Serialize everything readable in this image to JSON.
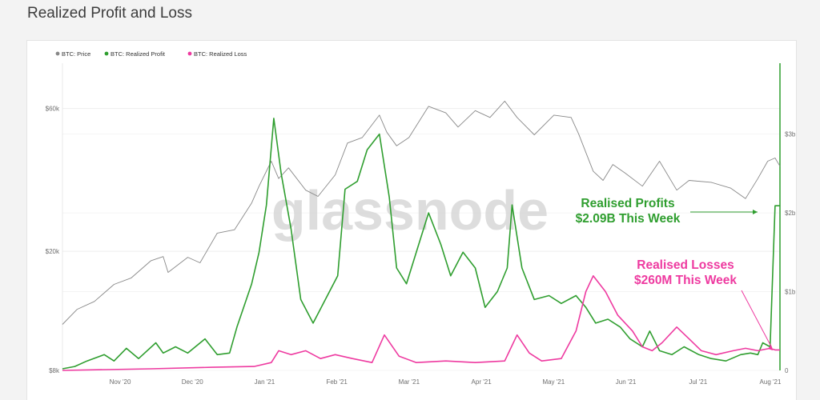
{
  "page": {
    "title": "Realized Profit and Loss"
  },
  "watermark": "glassnode",
  "colors": {
    "price": "#888888",
    "profit": "#2f9e2f",
    "loss": "#ee3aa0"
  },
  "chart_data": {
    "type": "line",
    "title": "",
    "legend": {
      "placement": "top-left",
      "entries": [
        "BTC: Price",
        "BTC: Realized Profit",
        "BTC: Realized Loss"
      ]
    },
    "x_ticks": [
      "Nov '20",
      "Dec '20",
      "Jan '21",
      "Feb '21",
      "Mar '21",
      "Apr '21",
      "May '21",
      "Jun '21",
      "Jul '21",
      "Aug '21"
    ],
    "x_range": [
      "2020-10-15",
      "2021-08-03"
    ],
    "left_axis": {
      "scale": "log",
      "ticks": [
        {
          "label": "$8k",
          "value": 8000
        },
        {
          "label": "$20k",
          "value": 20000
        },
        {
          "label": "$60k",
          "value": 60000
        }
      ],
      "range": [
        8000,
        85000
      ]
    },
    "right_axis": {
      "scale": "linear",
      "unit": "USD billions",
      "ticks": [
        {
          "label": "0",
          "value": 0
        },
        {
          "label": "$1b",
          "value": 1
        },
        {
          "label": "$2b",
          "value": 2
        },
        {
          "label": "$3b",
          "value": 3
        }
      ],
      "range": [
        0,
        3.9
      ]
    },
    "grid": true,
    "series": [
      {
        "name": "BTC: Price",
        "axis": "left",
        "color": "#888888",
        "points": [
          [
            "2020-10-15",
            11400
          ],
          [
            "2020-10-21",
            12800
          ],
          [
            "2020-10-28",
            13600
          ],
          [
            "2020-11-05",
            15500
          ],
          [
            "2020-11-12",
            16300
          ],
          [
            "2020-11-20",
            18600
          ],
          [
            "2020-11-25",
            19200
          ],
          [
            "2020-11-27",
            17000
          ],
          [
            "2020-12-05",
            19100
          ],
          [
            "2020-12-10",
            18300
          ],
          [
            "2020-12-17",
            23000
          ],
          [
            "2020-12-24",
            23600
          ],
          [
            "2020-12-31",
            29000
          ],
          [
            "2021-01-03",
            33000
          ],
          [
            "2021-01-08",
            40000
          ],
          [
            "2021-01-11",
            35000
          ],
          [
            "2021-01-15",
            38000
          ],
          [
            "2021-01-22",
            32000
          ],
          [
            "2021-01-27",
            30500
          ],
          [
            "2021-02-03",
            36000
          ],
          [
            "2021-02-08",
            46000
          ],
          [
            "2021-02-14",
            48000
          ],
          [
            "2021-02-21",
            57000
          ],
          [
            "2021-02-24",
            50000
          ],
          [
            "2021-02-28",
            45000
          ],
          [
            "2021-03-05",
            48000
          ],
          [
            "2021-03-13",
            61000
          ],
          [
            "2021-03-20",
            58000
          ],
          [
            "2021-03-25",
            52000
          ],
          [
            "2021-04-01",
            59000
          ],
          [
            "2021-04-07",
            56000
          ],
          [
            "2021-04-13",
            63500
          ],
          [
            "2021-04-18",
            56000
          ],
          [
            "2021-04-25",
            49000
          ],
          [
            "2021-05-03",
            57000
          ],
          [
            "2021-05-10",
            56000
          ],
          [
            "2021-05-13",
            49500
          ],
          [
            "2021-05-19",
            37000
          ],
          [
            "2021-05-23",
            34500
          ],
          [
            "2021-05-27",
            39000
          ],
          [
            "2021-06-01",
            36500
          ],
          [
            "2021-06-08",
            33000
          ],
          [
            "2021-06-15",
            40000
          ],
          [
            "2021-06-22",
            32000
          ],
          [
            "2021-06-27",
            34500
          ],
          [
            "2021-07-06",
            34000
          ],
          [
            "2021-07-14",
            32500
          ],
          [
            "2021-07-20",
            30000
          ],
          [
            "2021-07-25",
            35000
          ],
          [
            "2021-07-29",
            40000
          ],
          [
            "2021-08-01",
            41000
          ],
          [
            "2021-08-03",
            38500
          ]
        ]
      },
      {
        "name": "BTC: Realized Profit",
        "axis": "right",
        "color": "#2f9e2f",
        "points": [
          [
            "2020-10-15",
            0.02
          ],
          [
            "2020-10-20",
            0.05
          ],
          [
            "2020-10-25",
            0.12
          ],
          [
            "2020-11-01",
            0.2
          ],
          [
            "2020-11-05",
            0.12
          ],
          [
            "2020-11-10",
            0.28
          ],
          [
            "2020-11-15",
            0.15
          ],
          [
            "2020-11-22",
            0.35
          ],
          [
            "2020-11-25",
            0.22
          ],
          [
            "2020-11-30",
            0.3
          ],
          [
            "2020-12-05",
            0.22
          ],
          [
            "2020-12-12",
            0.4
          ],
          [
            "2020-12-17",
            0.2
          ],
          [
            "2020-12-22",
            0.22
          ],
          [
            "2020-12-25",
            0.55
          ],
          [
            "2020-12-31",
            1.1
          ],
          [
            "2021-01-03",
            1.5
          ],
          [
            "2021-01-06",
            2.1
          ],
          [
            "2021-01-09",
            3.2
          ],
          [
            "2021-01-12",
            2.5
          ],
          [
            "2021-01-16",
            1.8
          ],
          [
            "2021-01-20",
            0.9
          ],
          [
            "2021-01-25",
            0.6
          ],
          [
            "2021-01-30",
            0.9
          ],
          [
            "2021-02-04",
            1.2
          ],
          [
            "2021-02-07",
            2.3
          ],
          [
            "2021-02-12",
            2.4
          ],
          [
            "2021-02-16",
            2.8
          ],
          [
            "2021-02-21",
            3.0
          ],
          [
            "2021-02-25",
            2.2
          ],
          [
            "2021-02-28",
            1.3
          ],
          [
            "2021-03-04",
            1.1
          ],
          [
            "2021-03-09",
            1.6
          ],
          [
            "2021-03-13",
            2.0
          ],
          [
            "2021-03-18",
            1.6
          ],
          [
            "2021-03-22",
            1.2
          ],
          [
            "2021-03-27",
            1.5
          ],
          [
            "2021-04-01",
            1.3
          ],
          [
            "2021-04-05",
            0.8
          ],
          [
            "2021-04-10",
            1.0
          ],
          [
            "2021-04-14",
            1.3
          ],
          [
            "2021-04-16",
            2.1
          ],
          [
            "2021-04-20",
            1.3
          ],
          [
            "2021-04-25",
            0.9
          ],
          [
            "2021-05-01",
            0.95
          ],
          [
            "2021-05-06",
            0.85
          ],
          [
            "2021-05-12",
            0.95
          ],
          [
            "2021-05-16",
            0.8
          ],
          [
            "2021-05-20",
            0.6
          ],
          [
            "2021-05-25",
            0.65
          ],
          [
            "2021-05-30",
            0.55
          ],
          [
            "2021-06-03",
            0.4
          ],
          [
            "2021-06-08",
            0.3
          ],
          [
            "2021-06-11",
            0.5
          ],
          [
            "2021-06-15",
            0.25
          ],
          [
            "2021-06-20",
            0.2
          ],
          [
            "2021-06-25",
            0.3
          ],
          [
            "2021-07-01",
            0.2
          ],
          [
            "2021-07-06",
            0.15
          ],
          [
            "2021-07-12",
            0.12
          ],
          [
            "2021-07-18",
            0.2
          ],
          [
            "2021-07-22",
            0.22
          ],
          [
            "2021-07-25",
            0.2
          ],
          [
            "2021-07-27",
            0.35
          ],
          [
            "2021-07-30",
            0.3
          ],
          [
            "2021-08-01",
            2.09
          ],
          [
            "2021-08-03",
            2.09
          ]
        ]
      },
      {
        "name": "BTC: Realized Loss",
        "axis": "right",
        "color": "#ee3aa0",
        "points": [
          [
            "2020-10-15",
            0.0
          ],
          [
            "2020-11-20",
            0.02
          ],
          [
            "2020-12-15",
            0.04
          ],
          [
            "2021-01-01",
            0.05
          ],
          [
            "2021-01-08",
            0.1
          ],
          [
            "2021-01-11",
            0.25
          ],
          [
            "2021-01-16",
            0.2
          ],
          [
            "2021-01-22",
            0.25
          ],
          [
            "2021-01-28",
            0.15
          ],
          [
            "2021-02-03",
            0.2
          ],
          [
            "2021-02-10",
            0.15
          ],
          [
            "2021-02-18",
            0.1
          ],
          [
            "2021-02-23",
            0.45
          ],
          [
            "2021-03-01",
            0.18
          ],
          [
            "2021-03-08",
            0.1
          ],
          [
            "2021-03-20",
            0.12
          ],
          [
            "2021-04-01",
            0.1
          ],
          [
            "2021-04-13",
            0.12
          ],
          [
            "2021-04-18",
            0.45
          ],
          [
            "2021-04-23",
            0.22
          ],
          [
            "2021-04-28",
            0.12
          ],
          [
            "2021-05-06",
            0.15
          ],
          [
            "2021-05-12",
            0.5
          ],
          [
            "2021-05-16",
            1.0
          ],
          [
            "2021-05-19",
            1.2
          ],
          [
            "2021-05-24",
            1.0
          ],
          [
            "2021-05-29",
            0.7
          ],
          [
            "2021-06-04",
            0.5
          ],
          [
            "2021-06-08",
            0.3
          ],
          [
            "2021-06-12",
            0.25
          ],
          [
            "2021-06-16",
            0.35
          ],
          [
            "2021-06-22",
            0.55
          ],
          [
            "2021-06-27",
            0.4
          ],
          [
            "2021-07-02",
            0.25
          ],
          [
            "2021-07-08",
            0.2
          ],
          [
            "2021-07-15",
            0.25
          ],
          [
            "2021-07-20",
            0.28
          ],
          [
            "2021-07-25",
            0.25
          ],
          [
            "2021-07-30",
            0.28
          ],
          [
            "2021-08-01",
            0.26
          ],
          [
            "2021-08-03",
            0.26
          ]
        ]
      }
    ],
    "annotations": [
      {
        "line1": "Realised Profits",
        "line2": "$2.09B This Week",
        "color": "#2f9e2f"
      },
      {
        "line1": "Realised Losses",
        "line2": "$260M This Week",
        "color": "#ee3aa0"
      }
    ]
  }
}
